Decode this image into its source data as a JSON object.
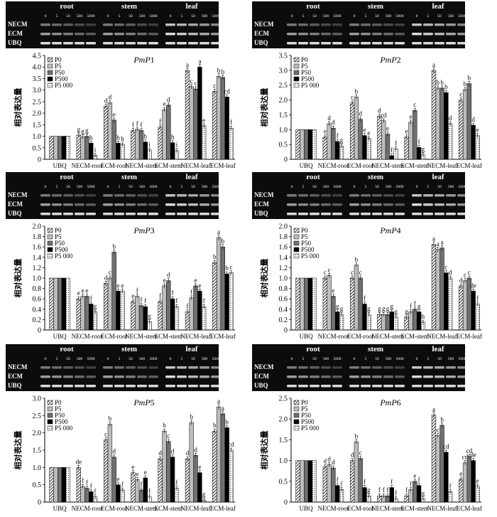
{
  "gel": {
    "groups": [
      "root",
      "stem",
      "leaf"
    ],
    "lanes": [
      "0",
      "5",
      "50",
      "500",
      "5000"
    ],
    "rows": [
      "NECM",
      "ECM",
      "UBQ"
    ]
  },
  "colors": {
    "P0": "#ffffff_hatch",
    "P5": "#bdbdbd",
    "P50": "#707070",
    "P500": "#000000",
    "P5 000": "#ffffff_dots"
  },
  "chart_data": [
    {
      "type": "bar",
      "title": "PmP1",
      "title_gene": "PmP",
      "title_num": "1",
      "ylabel": "相对表达量",
      "ylim": [
        0,
        4.5
      ],
      "yticks": [
        0,
        0.5,
        1.0,
        1.5,
        2.0,
        2.5,
        3.0,
        3.5,
        4.0,
        4.5
      ],
      "categories": [
        "UBQ",
        "NECM-root",
        "ECM-root",
        "NECM-stem",
        "ECM-stem",
        "NECM-leaf",
        "ECM-leaf"
      ],
      "series": [
        {
          "name": "P0",
          "values": [
            1.0,
            1.05,
            2.3,
            1.25,
            1.4,
            3.85,
            2.95
          ]
        },
        {
          "name": "P5",
          "values": [
            1.0,
            0.97,
            2.45,
            1.3,
            2.15,
            3.15,
            3.6
          ]
        },
        {
          "name": "P50",
          "values": [
            1.0,
            1.0,
            1.7,
            1.25,
            2.35,
            3.05,
            3.55
          ]
        },
        {
          "name": "P500",
          "values": [
            1.0,
            0.7,
            0.7,
            0.75,
            0.72,
            4.0,
            2.7
          ]
        },
        {
          "name": "P5 000",
          "values": [
            1.0,
            0.17,
            0.65,
            0.4,
            0.38,
            1.45,
            1.35
          ]
        }
      ],
      "letters": [
        [
          "",
          "",
          "",
          "",
          ""
        ],
        [
          "g",
          "g",
          "g",
          "h",
          "i"
        ],
        [
          "d",
          "d",
          "e",
          "h",
          "h"
        ],
        [
          "f",
          "f",
          "f",
          "h",
          "i"
        ],
        [
          "f",
          "e",
          "d",
          "h",
          "i"
        ],
        [
          "a",
          "c",
          "c",
          "a",
          "e"
        ],
        [
          "c",
          "b",
          "b",
          "cd",
          "f"
        ]
      ]
    },
    {
      "type": "bar",
      "title": "PmP2",
      "title_gene": "PmP",
      "title_num": "2",
      "ylabel": "相对表达量",
      "ylim": [
        0,
        3.5
      ],
      "yticks": [
        0,
        0.5,
        1.0,
        1.5,
        2.0,
        2.5,
        3.0,
        3.5
      ],
      "categories": [
        "UBQ",
        "NECM-root",
        "ECM-root",
        "NECM-stem",
        "ECM-stem",
        "NECM-leaf",
        "ECM-leaf"
      ],
      "series": [
        {
          "name": "P0",
          "values": [
            1.0,
            0.75,
            1.9,
            1.45,
            0.75,
            3.0,
            2.0
          ]
        },
        {
          "name": "P5",
          "values": [
            1.0,
            1.2,
            2.1,
            1.3,
            1.25,
            2.4,
            2.35
          ]
        },
        {
          "name": "P50",
          "values": [
            1.0,
            1.05,
            1.35,
            0.85,
            1.65,
            2.4,
            2.55
          ]
        },
        {
          "name": "P500",
          "values": [
            1.0,
            0.6,
            0.8,
            0.12,
            0.4,
            2.25,
            1.15
          ]
        },
        {
          "name": "P5 000",
          "values": [
            1.0,
            0.45,
            0.7,
            0.35,
            0.15,
            1.2,
            0.8
          ]
        }
      ],
      "letters": [
        [
          "",
          "",
          "",
          "",
          ""
        ],
        [
          "e",
          "d",
          "d",
          "f",
          "g"
        ],
        [
          "c",
          "b",
          "d",
          "e",
          "e"
        ],
        [
          "d",
          "cd",
          "e",
          "f",
          "f"
        ],
        [
          "e",
          "e",
          "c",
          "f",
          "g"
        ],
        [
          "a",
          "b",
          "b",
          "b",
          "d"
        ],
        [
          "c",
          "b",
          "b",
          "d",
          "e"
        ]
      ]
    },
    {
      "type": "bar",
      "title": "PmP3",
      "title_gene": "PmP",
      "title_num": "3",
      "ylabel": "相对表达量",
      "ylim": [
        0,
        2.0
      ],
      "yticks": [
        0,
        0.2,
        0.4,
        0.6,
        0.8,
        1.0,
        1.2,
        1.4,
        1.6,
        1.8,
        2.0
      ],
      "categories": [
        "UBQ",
        "NECM-root",
        "ECM-root",
        "NECM-stem",
        "ECM-stem",
        "NECM-leaf",
        "ECM-leaf"
      ],
      "series": [
        {
          "name": "P0",
          "values": [
            1.0,
            0.6,
            0.9,
            0.55,
            0.55,
            0.35,
            1.3
          ]
        },
        {
          "name": "P5",
          "values": [
            1.0,
            0.65,
            1.0,
            0.65,
            0.85,
            0.62,
            1.78
          ]
        },
        {
          "name": "P50",
          "values": [
            1.0,
            0.65,
            1.5,
            0.47,
            0.95,
            0.85,
            1.6
          ]
        },
        {
          "name": "P500",
          "values": [
            1.0,
            0.5,
            0.75,
            0.45,
            0.6,
            0.75,
            1.08
          ]
        },
        {
          "name": "P5 000",
          "values": [
            1.0,
            0.35,
            0.75,
            0.16,
            0.45,
            0.45,
            1.1
          ]
        }
      ],
      "letters": [
        [
          "",
          "",
          "",
          "",
          ""
        ],
        [
          "e",
          "e",
          "e",
          "f",
          "g"
        ],
        [
          "d",
          "c",
          "b",
          "e",
          "e"
        ],
        [
          "e",
          "f",
          "f",
          "f",
          "g"
        ],
        [
          "f",
          "e",
          "d",
          "f",
          "f"
        ],
        [
          "f",
          "f",
          "e",
          "e",
          "f"
        ],
        [
          "b",
          "a",
          "b",
          "b",
          "c"
        ]
      ]
    },
    {
      "type": "bar",
      "title": "PmP4",
      "title_gene": "PmP",
      "title_num": "4",
      "ylabel": "相对表达量",
      "ylim": [
        0,
        2.0
      ],
      "yticks": [
        0,
        0.2,
        0.4,
        0.6,
        0.8,
        1.0,
        1.2,
        1.4,
        1.6,
        1.8,
        2.0
      ],
      "categories": [
        "UBQ",
        "NECM-root",
        "ECM-root",
        "NECM-stem",
        "ECM-stem",
        "NECM-leaf",
        "ECM-leaf"
      ],
      "series": [
        {
          "name": "P0",
          "values": [
            1.0,
            1.0,
            1.0,
            0.3,
            0.25,
            1.65,
            0.85
          ]
        },
        {
          "name": "P5",
          "values": [
            1.0,
            1.05,
            1.25,
            0.3,
            0.35,
            1.55,
            0.95
          ]
        },
        {
          "name": "P50",
          "values": [
            1.0,
            0.65,
            1.0,
            0.3,
            0.4,
            1.58,
            1.0
          ]
        },
        {
          "name": "P500",
          "values": [
            1.0,
            0.35,
            0.5,
            0.35,
            0.35,
            1.1,
            0.75
          ]
        },
        {
          "name": "P5 000",
          "values": [
            1.0,
            0.3,
            0.3,
            0.25,
            0.15,
            1.0,
            0.5
          ]
        }
      ],
      "letters": [
        [
          "",
          "",
          "",
          "",
          ""
        ],
        [
          "c",
          "c",
          "e",
          "g",
          "g"
        ],
        [
          "c",
          "b",
          "c",
          "f",
          "g"
        ],
        [
          "g",
          "g",
          "g",
          "g",
          "g"
        ],
        [
          "g",
          "f",
          "f",
          "g",
          "h"
        ],
        [
          "a",
          "a",
          "a",
          "c",
          "d"
        ],
        [
          "d",
          "c",
          "c",
          "de",
          "f"
        ]
      ]
    },
    {
      "type": "bar",
      "title": "PmP5",
      "title_gene": "PmP",
      "title_num": "5",
      "ylabel": "相对表达量",
      "ylim": [
        0,
        3.0
      ],
      "yticks": [
        0,
        0.5,
        1.0,
        1.5,
        2.0,
        2.5,
        3.0
      ],
      "categories": [
        "UBQ",
        "NECM-root",
        "ECM-root",
        "NECM-stem",
        "ECM-stem",
        "NECM-leaf",
        "ECM-leaf"
      ],
      "series": [
        {
          "name": "P0",
          "values": [
            1.0,
            1.0,
            1.8,
            0.85,
            1.25,
            1.25,
            2.05
          ]
        },
        {
          "name": "P5",
          "values": [
            1.0,
            0.45,
            2.25,
            0.65,
            2.05,
            2.3,
            2.75
          ]
        },
        {
          "name": "P50",
          "values": [
            1.0,
            0.4,
            1.3,
            0.35,
            1.75,
            1.35,
            2.55
          ]
        },
        {
          "name": "P500",
          "values": [
            1.0,
            0.3,
            0.5,
            0.7,
            1.3,
            0.85,
            2.15
          ]
        },
        {
          "name": "P5 000",
          "values": [
            1.0,
            0.15,
            0.35,
            0.15,
            0.4,
            0.06,
            1.5
          ]
        }
      ],
      "letters": [
        [
          "",
          "",
          "",
          "",
          ""
        ],
        [
          "de",
          "f",
          "f",
          "f",
          "f"
        ],
        [
          "c",
          "b",
          "d",
          "e",
          "f"
        ],
        [
          "e",
          "e",
          "f",
          "e",
          "f"
        ],
        [
          "d",
          "b",
          "c",
          "d",
          "f"
        ],
        [
          "d",
          "b",
          "d",
          "e",
          "g"
        ],
        [
          "b",
          "a",
          "a",
          "b",
          "cd"
        ]
      ]
    },
    {
      "type": "bar",
      "title": "PmP6",
      "title_gene": "PmP",
      "title_num": "6",
      "ylabel": "相对表达量",
      "ylim": [
        0,
        2.5
      ],
      "yticks": [
        0,
        0.5,
        1.0,
        1.5,
        2.0,
        2.5
      ],
      "categories": [
        "UBQ",
        "NECM-root",
        "ECM-root",
        "NECM-stem",
        "ECM-stem",
        "NECM-leaf",
        "ECM-leaf"
      ],
      "series": [
        {
          "name": "P0",
          "values": [
            1.0,
            0.85,
            1.0,
            0.15,
            0.15,
            2.1,
            0.55
          ]
        },
        {
          "name": "P5",
          "values": [
            1.0,
            0.9,
            1.45,
            0.15,
            0.3,
            1.6,
            0.95
          ]
        },
        {
          "name": "P50",
          "values": [
            1.0,
            0.82,
            1.05,
            0.15,
            0.5,
            1.85,
            1.1
          ]
        },
        {
          "name": "P500",
          "values": [
            1.0,
            0.4,
            0.35,
            0.35,
            0.4,
            1.2,
            1.0
          ]
        },
        {
          "name": "P5 000",
          "values": [
            1.0,
            0.3,
            0.15,
            0.08,
            0.08,
            0.25,
            0.38
          ]
        }
      ],
      "letters": [
        [
          "",
          "",
          "",
          "",
          ""
        ],
        [
          "d",
          "d",
          "d",
          "f",
          "f"
        ],
        [
          "d",
          "b",
          "c",
          "f",
          "g"
        ],
        [
          "f",
          "f",
          "f",
          "f",
          "f"
        ],
        [
          "f",
          "f",
          "e",
          "f",
          "g"
        ],
        [
          "a",
          "c",
          "b",
          "cd",
          "f"
        ],
        [
          "e",
          "cd",
          "cd",
          "de",
          "e"
        ]
      ]
    }
  ]
}
